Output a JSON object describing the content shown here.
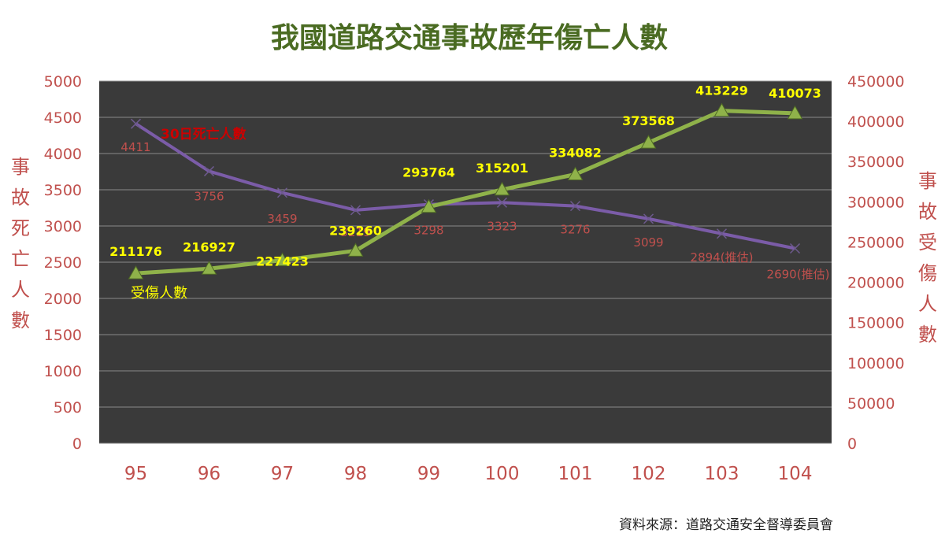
{
  "chart_data": {
    "type": "line",
    "title": "我國道路交通事故歷年傷亡人數",
    "categories": [
      "95",
      "96",
      "97",
      "98",
      "99",
      "100",
      "101",
      "102",
      "103",
      "104"
    ],
    "y_left_label": "事故死亡人數",
    "y_right_label": "事故受傷人數",
    "y_left_range": [
      0,
      5000
    ],
    "y_left_ticks": [
      "0",
      "500",
      "1000",
      "1500",
      "2000",
      "2500",
      "3000",
      "3500",
      "4000",
      "4500",
      "5000"
    ],
    "y_right_range": [
      0,
      450000
    ],
    "y_right_ticks": [
      "0",
      "50000",
      "100000",
      "150000",
      "200000",
      "250000",
      "300000",
      "350000",
      "400000",
      "450000"
    ],
    "grid": true,
    "series": [
      {
        "name": "30日死亡人數",
        "axis": "left",
        "color": "#7B5CA8",
        "values": [
          4411,
          3756,
          3459,
          3219,
          3298,
          3323,
          3276,
          3099,
          2894,
          2690
        ],
        "labels": [
          "4411",
          "3756",
          "3459",
          "3219",
          "3298",
          "3323",
          "3276",
          "3099",
          "2894(推估)",
          "2690(推估)"
        ]
      },
      {
        "name": "受傷人數",
        "axis": "right",
        "color": "#8FB24A",
        "values": [
          211176,
          216927,
          227423,
          239260,
          293764,
          315201,
          334082,
          373568,
          413229,
          410073
        ],
        "labels": [
          "211176",
          "216927",
          "227423",
          "239260",
          "293764",
          "315201",
          "334082",
          "373568",
          "413229",
          "410073"
        ]
      }
    ]
  },
  "source_note": "資料來源：道路交通安全督導委員會"
}
